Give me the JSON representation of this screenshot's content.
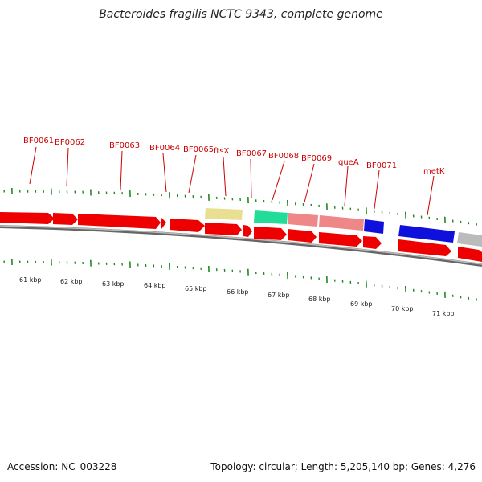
{
  "title": "Bacteroides fragilis NCTC 9343, complete genome",
  "footer": {
    "accession": "Accession: NC_003228",
    "stats": "Topology: circular; Length: 5,205,140 bp; Genes: 4,276"
  },
  "colors": {
    "forward_gene": "#ee0000",
    "background_tick": "#228822",
    "label": "#cc0000",
    "backbone": "#888888",
    "segment_yellow": "#e8e090",
    "segment_green": "#22dd99",
    "segment_pink": "#ee8888",
    "segment_blue": "#1010dd",
    "segment_gray": "#bbbbbb"
  },
  "scale_labels": [
    "61 kbp",
    "62 kbp",
    "63 kbp",
    "64 kbp",
    "65 kbp",
    "66 kbp",
    "67 kbp",
    "68 kbp",
    "69 kbp",
    "70 kbp",
    "71 kbp"
  ],
  "gene_labels": [
    "BF0061",
    "BF0062",
    "BF0063",
    "BF0064",
    "BF0065",
    "ftsX",
    "BF0067",
    "BF0068",
    "BF0069",
    "queA",
    "BF0071",
    "metK"
  ]
}
